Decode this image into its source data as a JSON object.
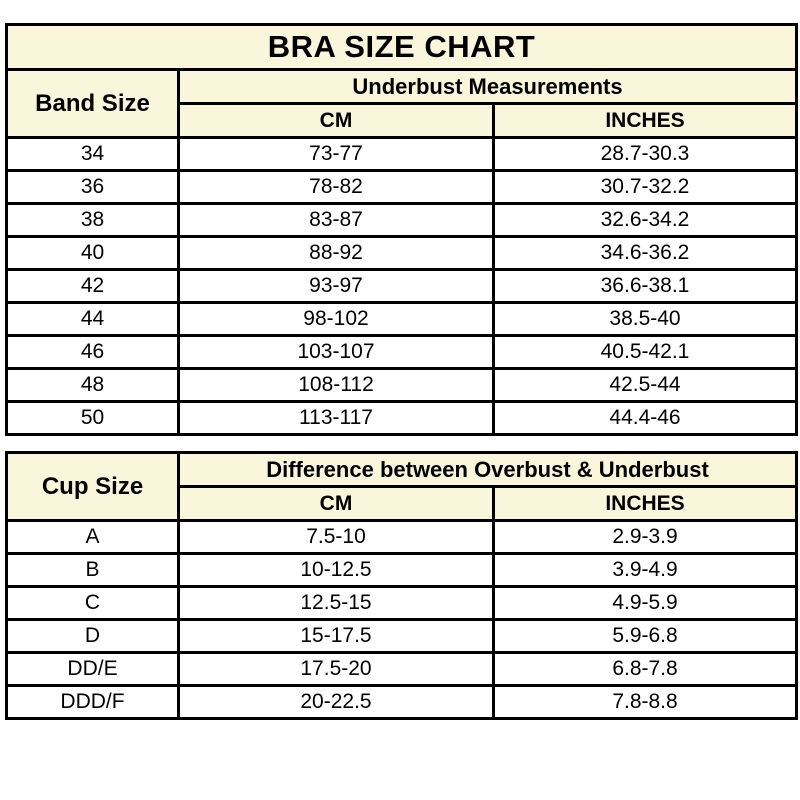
{
  "colors": {
    "header_background": "#faf6dc",
    "border": "#000000",
    "text": "#000000",
    "row_background": "#ffffff"
  },
  "chart_data": [
    {
      "type": "table",
      "title": "BRA SIZE CHART",
      "row_header": "Band Size",
      "group_header": "Underbust Measurements",
      "sub_headers": [
        "CM",
        "INCHES"
      ],
      "rows": [
        [
          "34",
          "73-77",
          "28.7-30.3"
        ],
        [
          "36",
          "78-82",
          "30.7-32.2"
        ],
        [
          "38",
          "83-87",
          "32.6-34.2"
        ],
        [
          "40",
          "88-92",
          "34.6-36.2"
        ],
        [
          "42",
          "93-97",
          "36.6-38.1"
        ],
        [
          "44",
          "98-102",
          "38.5-40"
        ],
        [
          "46",
          "103-107",
          "40.5-42.1"
        ],
        [
          "48",
          "108-112",
          "42.5-44"
        ],
        [
          "50",
          "113-117",
          "44.4-46"
        ]
      ]
    },
    {
      "type": "table",
      "row_header": "Cup Size",
      "group_header": "Difference between Overbust & Underbust",
      "sub_headers": [
        "CM",
        "INCHES"
      ],
      "rows": [
        [
          "A",
          "7.5-10",
          "2.9-3.9"
        ],
        [
          "B",
          "10-12.5",
          "3.9-4.9"
        ],
        [
          "C",
          "12.5-15",
          "4.9-5.9"
        ],
        [
          "D",
          "15-17.5",
          "5.9-6.8"
        ],
        [
          "DD/E",
          "17.5-20",
          "6.8-7.8"
        ],
        [
          "DDD/F",
          "20-22.5",
          "7.8-8.8"
        ]
      ]
    }
  ]
}
